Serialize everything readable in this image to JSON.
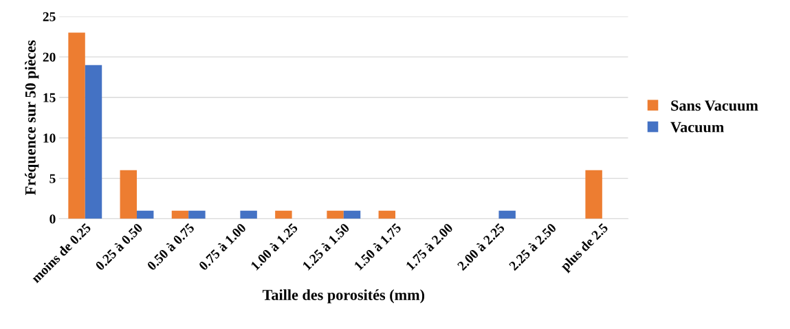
{
  "chart_data": {
    "type": "bar",
    "xlabel": "Taille des porosités (mm)",
    "ylabel": "Fréquence sur 50 pièces",
    "categories": [
      "moins de 0.25",
      "0.25 à 0.50",
      "0.50 à 0.75",
      "0.75 à 1.00",
      "1.00 à 1.25",
      "1.25 à 1.50",
      "1.50 à 1.75",
      "1.75 à 2.00",
      "2.00 à 2.25",
      "2.25 à 2.50",
      "plus de 2.5"
    ],
    "series": [
      {
        "name": "Sans Vacuum",
        "color": "#ed7d31",
        "values": [
          23,
          6,
          1,
          0,
          1,
          1,
          1,
          0,
          0,
          0,
          6
        ]
      },
      {
        "name": "Vacuum",
        "color": "#4472c4",
        "values": [
          19,
          1,
          1,
          1,
          0,
          1,
          0,
          0,
          1,
          0,
          0
        ]
      }
    ],
    "ylim": [
      0,
      25
    ],
    "yticks": [
      0,
      5,
      10,
      15,
      20,
      25
    ],
    "grid": "y",
    "legend": "right"
  }
}
